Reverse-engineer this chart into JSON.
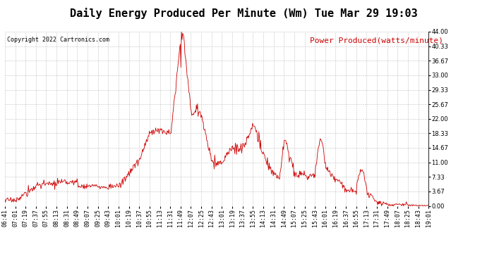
{
  "title": "Daily Energy Produced Per Minute (Wm) Tue Mar 29 19:03",
  "legend_label": "Power Produced(watts/minute)",
  "copyright_text": "Copyright 2022 Cartronics.com",
  "line_color": "#cc0000",
  "background_color": "#ffffff",
  "grid_color": "#b0b0b0",
  "title_color": "#000000",
  "legend_color": "#cc0000",
  "copyright_color": "#000000",
  "ylim": [
    0,
    44.0
  ],
  "yticks": [
    0.0,
    3.67,
    7.33,
    11.0,
    14.67,
    18.33,
    22.0,
    25.67,
    29.33,
    33.0,
    36.67,
    40.33,
    44.0
  ],
  "xtick_labels": [
    "06:41",
    "07:01",
    "07:19",
    "07:37",
    "07:55",
    "08:13",
    "08:31",
    "08:49",
    "09:07",
    "09:25",
    "09:43",
    "10:01",
    "10:19",
    "10:37",
    "10:55",
    "11:13",
    "11:31",
    "11:49",
    "12:07",
    "12:25",
    "12:43",
    "13:01",
    "13:19",
    "13:37",
    "13:55",
    "14:13",
    "14:31",
    "14:49",
    "15:07",
    "15:25",
    "15:43",
    "16:01",
    "16:19",
    "16:37",
    "16:55",
    "17:13",
    "17:31",
    "17:49",
    "18:07",
    "18:25",
    "18:43",
    "19:01"
  ],
  "title_fontsize": 11,
  "axis_fontsize": 6,
  "legend_fontsize": 8,
  "copyright_fontsize": 6,
  "figwidth": 6.9,
  "figheight": 3.75,
  "dpi": 100
}
